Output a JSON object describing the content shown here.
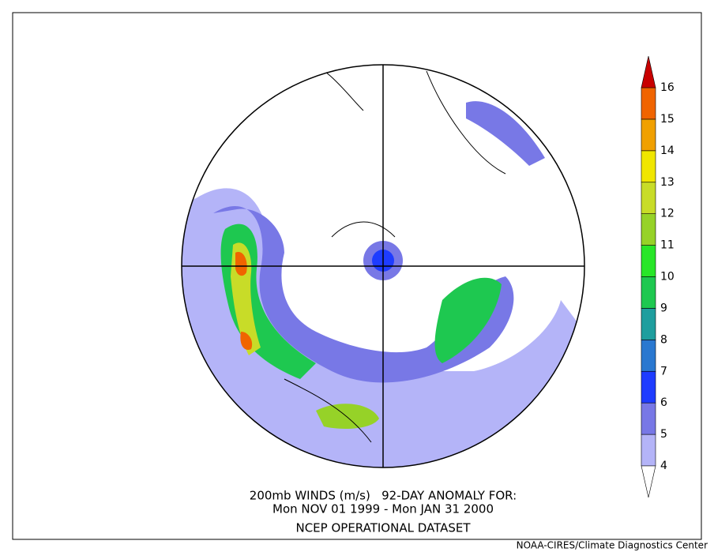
{
  "caption": {
    "line1": "200mb WINDS (m/s)   92-DAY ANOMALY FOR:",
    "line2": "Mon NOV 01 1999 - Mon JAN 31 2000",
    "line3": "NCEP OPERATIONAL DATASET"
  },
  "footer": "NOAA-CIRES/Climate Diagnostics Center",
  "colorbar": {
    "ticks": [
      4,
      5,
      6,
      7,
      8,
      9,
      10,
      11,
      12,
      13,
      14,
      15,
      16
    ],
    "colors": [
      "#b4b4f8",
      "#7878e6",
      "#1e3cff",
      "#2a78d0",
      "#1e9e9e",
      "#1ec850",
      "#28e628",
      "#96d228",
      "#c8dc28",
      "#f0e600",
      "#f0a000",
      "#f06400"
    ],
    "under_color": "#ffffff",
    "over_color": "#c80000"
  }
}
